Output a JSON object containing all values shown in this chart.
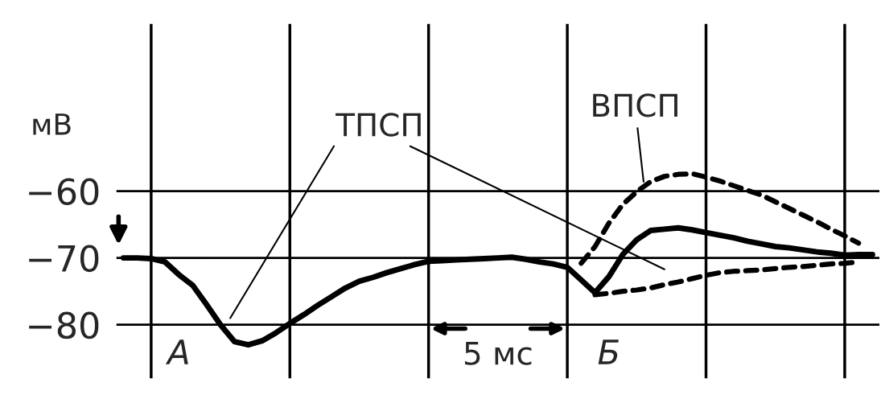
{
  "chart_data": {
    "type": "line",
    "ylabel": "мВ",
    "ylim": [
      -88,
      -35
    ],
    "categories": [
      null,
      null,
      null,
      null,
      null,
      null,
      null,
      null,
      null,
      null,
      null,
      null,
      null,
      null,
      null,
      null,
      null,
      null,
      null,
      null,
      null,
      null,
      null,
      null,
      null,
      null,
      null,
      null,
      null,
      null,
      null,
      null,
      null,
      null,
      null,
      null,
      null,
      null,
      null,
      null,
      null,
      null,
      null,
      null,
      null,
      null,
      null,
      null,
      null,
      null,
      null,
      null,
      null,
      null,
      null
    ],
    "yticks": [
      {
        "value": -80,
        "label": "−80"
      },
      {
        "value": -70,
        "label": "−70"
      },
      {
        "value": -60,
        "label": "−60"
      }
    ],
    "tick_labels": "y",
    "grid": true,
    "marker": "none",
    "series": [
      {
        "color": "#000000",
        "line_style": "solid",
        "values": [
          -70,
          -70,
          -70.1,
          -70.6,
          -72.5,
          -74.1,
          -77,
          -80,
          -82.5,
          -83,
          -82.4,
          -81.2,
          -79.8,
          -78.5,
          -77.1,
          -75.8,
          -74.5,
          -73.5,
          -72.9,
          -72.2,
          -71.6,
          -71,
          -70.5,
          -70.4,
          -70.3,
          -70.2,
          -70.1,
          -70,
          -69.9,
          -70.2,
          -70.6,
          -70.9,
          -71.4,
          -73.3,
          -75.2,
          -72.8,
          -69.5,
          -67.3,
          -65.9,
          -65.7,
          -65.5,
          -65.8,
          -66.2,
          -66.6,
          -67,
          -67.5,
          -67.9,
          -68.3,
          -68.5,
          -68.8,
          -69.1,
          -69.3,
          -69.6,
          -69.5,
          -69.5
        ]
      },
      {
        "color": "#000000",
        "line_style": "dashed",
        "values": [
          null,
          null,
          null,
          null,
          null,
          null,
          null,
          null,
          null,
          null,
          null,
          null,
          null,
          null,
          null,
          null,
          null,
          null,
          null,
          null,
          null,
          null,
          null,
          null,
          null,
          null,
          null,
          null,
          null,
          null,
          null,
          null,
          null,
          -70.8,
          -68.3,
          -64.8,
          -62,
          -60.1,
          -58.6,
          -57.8,
          -57.5,
          -57.4,
          -57.9,
          -58.5,
          -59.2,
          -59.9,
          -60.6,
          -61.6,
          -62.6,
          -63.6,
          -64.6,
          -65.7,
          -66.7,
          -67.8,
          null
        ]
      },
      {
        "color": "#000000",
        "line_style": "dashed",
        "values": [
          null,
          null,
          null,
          null,
          null,
          null,
          null,
          null,
          null,
          null,
          null,
          null,
          null,
          null,
          null,
          null,
          null,
          null,
          null,
          null,
          null,
          null,
          null,
          null,
          null,
          null,
          null,
          null,
          null,
          null,
          null,
          null,
          null,
          null,
          -75.5,
          -75.3,
          -75,
          -74.8,
          -74.5,
          -74,
          -73.6,
          -73.1,
          -72.6,
          -72.2,
          -72,
          -71.9,
          -71.8,
          -71.6,
          -71.4,
          -71.3,
          -71.1,
          -70.9,
          -70.8,
          -70.6,
          null
        ]
      }
    ],
    "annotations": [
      "ТПСП",
      "ВПСП",
      "А",
      "Б",
      "5 мс"
    ]
  }
}
